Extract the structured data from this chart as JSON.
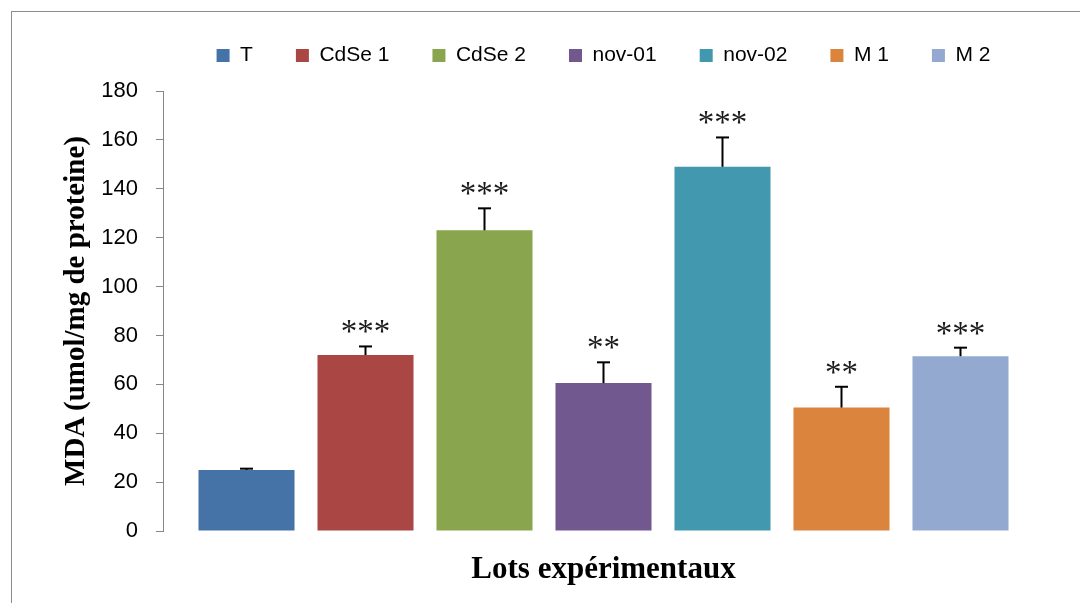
{
  "chart_data": {
    "type": "bar",
    "xlabel": "Lots expérimentaux",
    "ylabel": "MDA (umol/mg de proteine)",
    "categories": [
      null
    ],
    "series": [
      {
        "name": "T",
        "color": "#4572a7",
        "values": [
          25
        ],
        "errors": [
          [
            25,
            25.5
          ]
        ],
        "value_labels": [
          null
        ]
      },
      {
        "name": "CdSe 1",
        "color": "#aa4643",
        "values": [
          72
        ],
        "errors": [
          [
            72,
            75.5
          ]
        ],
        "value_labels": [
          "***"
        ]
      },
      {
        "name": "CdSe 2",
        "color": "#89a54e",
        "values": [
          123
        ],
        "errors": [
          [
            123,
            132
          ]
        ],
        "value_labels": [
          "***"
        ]
      },
      {
        "name": "nov-01",
        "color": "#71588f",
        "values": [
          60.5
        ],
        "errors": [
          [
            60.5,
            69
          ]
        ],
        "value_labels": [
          "**"
        ]
      },
      {
        "name": "nov-02",
        "color": "#4198af",
        "values": [
          149
        ],
        "errors": [
          [
            149,
            161
          ]
        ],
        "value_labels": [
          "***"
        ]
      },
      {
        "name": "M 1",
        "color": "#db843d",
        "values": [
          50.5
        ],
        "errors": [
          [
            50.5,
            59
          ]
        ],
        "value_labels": [
          "**"
        ]
      },
      {
        "name": "M 2",
        "color": "#93a9cf",
        "values": [
          71.5
        ],
        "errors": [
          [
            71.5,
            75
          ]
        ],
        "value_labels": [
          "***"
        ]
      }
    ],
    "ylim": [
      0,
      180
    ],
    "yticks": [
      0,
      20,
      40,
      60,
      80,
      100,
      120,
      140,
      160,
      180
    ],
    "legend": "top"
  }
}
